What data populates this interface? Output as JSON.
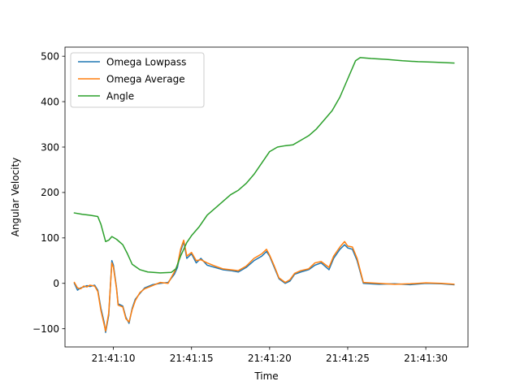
{
  "chart_data": {
    "type": "line",
    "title": "",
    "xlabel": "Time",
    "ylabel": "Angular Velocity",
    "x_axis_type": "time",
    "xlim": [
      "21:41:06.9",
      "21:41:32.7"
    ],
    "ylim": [
      -140,
      520
    ],
    "xticks": [
      "21:41:10",
      "21:41:15",
      "21:41:20",
      "21:41:25",
      "21:41:30"
    ],
    "yticks": [
      -100,
      0,
      100,
      200,
      300,
      400,
      500
    ],
    "ytick_labels": [
      "−100",
      "0",
      "100",
      "200",
      "300",
      "400",
      "500"
    ],
    "grid": false,
    "legend_position": "top-left",
    "series": [
      {
        "name": "Omega Lowpass",
        "color": "#1f77b4",
        "points": [
          [
            "21:41:07.5",
            0
          ],
          [
            "21:41:07.7",
            -15
          ],
          [
            "21:41:07.9",
            -10
          ],
          [
            "21:41:08.1",
            -8
          ],
          [
            "21:41:08.3",
            -5
          ],
          [
            "21:41:08.5",
            -7
          ],
          [
            "21:41:08.8",
            -4
          ],
          [
            "21:41:09.0",
            -15
          ],
          [
            "21:41:09.2",
            -55
          ],
          [
            "21:41:09.4",
            -85
          ],
          [
            "21:41:09.5",
            -108
          ],
          [
            "21:41:09.7",
            -70
          ],
          [
            "21:41:09.9",
            50
          ],
          [
            "21:41:10.0",
            40
          ],
          [
            "21:41:10.2",
            -10
          ],
          [
            "21:41:10.3",
            -45
          ],
          [
            "21:41:10.6",
            -50
          ],
          [
            "21:41:10.8",
            -75
          ],
          [
            "21:41:11.0",
            -88
          ],
          [
            "21:41:11.2",
            -55
          ],
          [
            "21:41:11.4",
            -35
          ],
          [
            "21:41:11.7",
            -22
          ],
          [
            "21:41:12.0",
            -10
          ],
          [
            "21:41:12.5",
            -3
          ],
          [
            "21:41:13.0",
            0
          ],
          [
            "21:41:13.5",
            2
          ],
          [
            "21:41:13.9",
            20
          ],
          [
            "21:41:14.1",
            35
          ],
          [
            "21:41:14.3",
            70
          ],
          [
            "21:41:14.5",
            92
          ],
          [
            "21:41:14.7",
            55
          ],
          [
            "21:41:15.0",
            65
          ],
          [
            "21:41:15.3",
            45
          ],
          [
            "21:41:15.6",
            55
          ],
          [
            "21:41:16.0",
            40
          ],
          [
            "21:41:16.5",
            35
          ],
          [
            "21:41:17.0",
            30
          ],
          [
            "21:41:17.5",
            28
          ],
          [
            "21:41:18.0",
            25
          ],
          [
            "21:41:18.5",
            35
          ],
          [
            "21:41:19.0",
            50
          ],
          [
            "21:41:19.5",
            60
          ],
          [
            "21:41:19.8",
            70
          ],
          [
            "21:41:20.0",
            60
          ],
          [
            "21:41:20.3",
            35
          ],
          [
            "21:41:20.6",
            10
          ],
          [
            "21:41:21.0",
            0
          ],
          [
            "21:41:21.3",
            5
          ],
          [
            "21:41:21.6",
            20
          ],
          [
            "21:41:22.0",
            25
          ],
          [
            "21:41:22.5",
            30
          ],
          [
            "21:41:22.9",
            40
          ],
          [
            "21:41:23.3",
            45
          ],
          [
            "21:41:23.8",
            30
          ],
          [
            "21:41:24.1",
            55
          ],
          [
            "21:41:24.5",
            75
          ],
          [
            "21:41:24.8",
            85
          ],
          [
            "21:41:25.0",
            78
          ],
          [
            "21:41:25.3",
            75
          ],
          [
            "21:41:25.6",
            50
          ],
          [
            "21:41:26.0",
            0
          ],
          [
            "21:41:27.0",
            -2
          ],
          [
            "21:41:28.0",
            -1
          ],
          [
            "21:41:29.0",
            -3
          ],
          [
            "21:41:30.0",
            0
          ],
          [
            "21:41:31.0",
            -1
          ],
          [
            "21:41:31.8",
            -3
          ]
        ]
      },
      {
        "name": "Omega Average",
        "color": "#ff7f0e",
        "points": [
          [
            "21:41:07.5",
            2
          ],
          [
            "21:41:07.7",
            -10
          ],
          [
            "21:41:07.9",
            -12
          ],
          [
            "21:41:08.1",
            -6
          ],
          [
            "21:41:08.3",
            -8
          ],
          [
            "21:41:08.5",
            -4
          ],
          [
            "21:41:08.8",
            -6
          ],
          [
            "21:41:09.0",
            -18
          ],
          [
            "21:41:09.2",
            -60
          ],
          [
            "21:41:09.4",
            -90
          ],
          [
            "21:41:09.5",
            -105
          ],
          [
            "21:41:09.7",
            -65
          ],
          [
            "21:41:09.9",
            45
          ],
          [
            "21:41:10.0",
            35
          ],
          [
            "21:41:10.2",
            -12
          ],
          [
            "21:41:10.3",
            -48
          ],
          [
            "21:41:10.6",
            -52
          ],
          [
            "21:41:10.8",
            -78
          ],
          [
            "21:41:11.0",
            -85
          ],
          [
            "21:41:11.2",
            -58
          ],
          [
            "21:41:11.4",
            -38
          ],
          [
            "21:41:11.7",
            -20
          ],
          [
            "21:41:12.0",
            -12
          ],
          [
            "21:41:12.5",
            -5
          ],
          [
            "21:41:13.0",
            2
          ],
          [
            "21:41:13.5",
            0
          ],
          [
            "21:41:13.9",
            25
          ],
          [
            "21:41:14.1",
            40
          ],
          [
            "21:41:14.3",
            75
          ],
          [
            "21:41:14.5",
            95
          ],
          [
            "21:41:14.7",
            60
          ],
          [
            "21:41:15.0",
            68
          ],
          [
            "21:41:15.3",
            50
          ],
          [
            "21:41:15.6",
            52
          ],
          [
            "21:41:16.0",
            45
          ],
          [
            "21:41:16.5",
            38
          ],
          [
            "21:41:17.0",
            32
          ],
          [
            "21:41:17.5",
            30
          ],
          [
            "21:41:18.0",
            28
          ],
          [
            "21:41:18.5",
            38
          ],
          [
            "21:41:19.0",
            55
          ],
          [
            "21:41:19.5",
            65
          ],
          [
            "21:41:19.8",
            75
          ],
          [
            "21:41:20.0",
            62
          ],
          [
            "21:41:20.3",
            38
          ],
          [
            "21:41:20.6",
            12
          ],
          [
            "21:41:21.0",
            2
          ],
          [
            "21:41:21.3",
            8
          ],
          [
            "21:41:21.6",
            22
          ],
          [
            "21:41:22.0",
            28
          ],
          [
            "21:41:22.5",
            32
          ],
          [
            "21:41:22.9",
            45
          ],
          [
            "21:41:23.3",
            48
          ],
          [
            "21:41:23.8",
            35
          ],
          [
            "21:41:24.1",
            60
          ],
          [
            "21:41:24.5",
            80
          ],
          [
            "21:41:24.8",
            92
          ],
          [
            "21:41:25.0",
            82
          ],
          [
            "21:41:25.3",
            80
          ],
          [
            "21:41:25.6",
            55
          ],
          [
            "21:41:26.0",
            2
          ],
          [
            "21:41:27.0",
            0
          ],
          [
            "21:41:28.0",
            -2
          ],
          [
            "21:41:29.0",
            -1
          ],
          [
            "21:41:30.0",
            1
          ],
          [
            "21:41:31.0",
            0
          ],
          [
            "21:41:31.8",
            -2
          ]
        ]
      },
      {
        "name": "Angle",
        "color": "#2ca02c",
        "points": [
          [
            "21:41:07.5",
            155
          ],
          [
            "21:41:08.0",
            152
          ],
          [
            "21:41:08.5",
            150
          ],
          [
            "21:41:09.0",
            147
          ],
          [
            "21:41:09.2",
            130
          ],
          [
            "21:41:09.5",
            92
          ],
          [
            "21:41:09.7",
            95
          ],
          [
            "21:41:09.9",
            103
          ],
          [
            "21:41:10.2",
            97
          ],
          [
            "21:41:10.6",
            85
          ],
          [
            "21:41:10.9",
            65
          ],
          [
            "21:41:11.2",
            42
          ],
          [
            "21:41:11.7",
            30
          ],
          [
            "21:41:12.2",
            25
          ],
          [
            "21:41:13.0",
            23
          ],
          [
            "21:41:13.7",
            24
          ],
          [
            "21:41:14.0",
            32
          ],
          [
            "21:41:14.3",
            60
          ],
          [
            "21:41:14.7",
            90
          ],
          [
            "21:41:15.0",
            105
          ],
          [
            "21:41:15.5",
            125
          ],
          [
            "21:41:16.0",
            150
          ],
          [
            "21:41:16.5",
            165
          ],
          [
            "21:41:17.0",
            180
          ],
          [
            "21:41:17.5",
            195
          ],
          [
            "21:41:18.0",
            205
          ],
          [
            "21:41:18.5",
            220
          ],
          [
            "21:41:19.0",
            240
          ],
          [
            "21:41:19.5",
            265
          ],
          [
            "21:41:20.0",
            290
          ],
          [
            "21:41:20.5",
            300
          ],
          [
            "21:41:21.0",
            303
          ],
          [
            "21:41:21.5",
            305
          ],
          [
            "21:41:22.0",
            315
          ],
          [
            "21:41:22.5",
            325
          ],
          [
            "21:41:23.0",
            340
          ],
          [
            "21:41:23.5",
            360
          ],
          [
            "21:41:24.0",
            380
          ],
          [
            "21:41:24.5",
            410
          ],
          [
            "21:41:25.0",
            450
          ],
          [
            "21:41:25.5",
            490
          ],
          [
            "21:41:25.8",
            497
          ],
          [
            "21:41:26.5",
            495
          ],
          [
            "21:41:27.5",
            493
          ],
          [
            "21:41:28.5",
            490
          ],
          [
            "21:41:29.5",
            488
          ],
          [
            "21:41:30.5",
            487
          ],
          [
            "21:41:31.8",
            485
          ]
        ]
      }
    ]
  }
}
